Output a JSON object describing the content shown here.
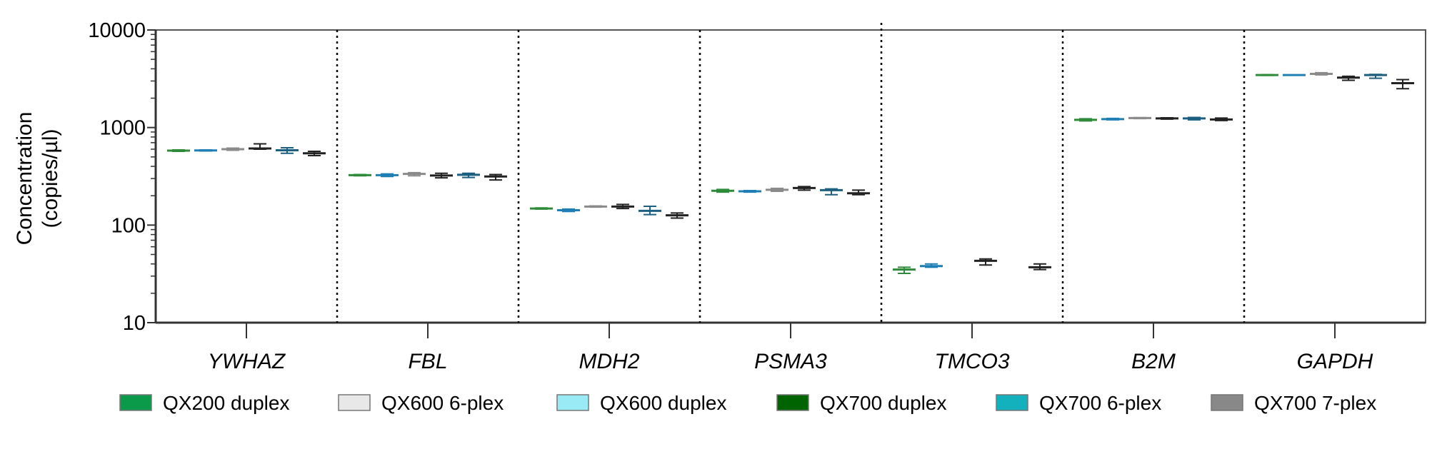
{
  "chart_data": {
    "type": "scatter",
    "subtype": "mean-with-error-bars",
    "ylabel_line1": "Concentration",
    "ylabel_line2": "(copies/µl)",
    "yscale": "log",
    "ylim": [
      10,
      10000
    ],
    "yticks": [
      "10",
      "100",
      "1000",
      "10000"
    ],
    "grid": false,
    "legend_placement": "bottom",
    "categories": [
      "YWHAZ",
      "FBL",
      "MDH2",
      "PSMA3",
      "TMCO3",
      "B2M",
      "GAPDH"
    ],
    "legend": [
      {
        "name": "QX200 duplex",
        "color": "#0a9a4a"
      },
      {
        "name": "QX600 6-plex",
        "color": "#e8e8e8"
      },
      {
        "name": "QX600 duplex",
        "color": "#9aeaf5"
      },
      {
        "name": "QX700 duplex",
        "color": "#006400"
      },
      {
        "name": "QX700 6-plex",
        "color": "#12b1bd"
      },
      {
        "name": "QX700 7-plex",
        "color": "#888888"
      }
    ],
    "series": [
      {
        "name": "QX200 duplex",
        "stroke": "#2e8b3a",
        "values": [
          580,
          325,
          148,
          225,
          35,
          1200,
          3450
        ],
        "low": [
          570,
          320,
          146,
          218,
          32,
          1170,
          3420
        ],
        "high": [
          590,
          330,
          150,
          232,
          37,
          1230,
          3480
        ]
      },
      {
        "name": "QX600 duplex",
        "stroke": "#1f7fb5",
        "values": [
          582,
          325,
          142,
          222,
          38,
          1220,
          3450
        ],
        "low": [
          575,
          315,
          138,
          218,
          37,
          1200,
          3440
        ],
        "high": [
          590,
          335,
          146,
          226,
          40,
          1240,
          3460
        ]
      },
      {
        "name": "QX600 6-plex",
        "stroke": "#8a8a8a",
        "values": [
          600,
          335,
          155,
          230,
          null,
          1250,
          3550
        ],
        "low": [
          585,
          320,
          153,
          222,
          null,
          1235,
          3470
        ],
        "high": [
          615,
          345,
          157,
          238,
          null,
          1265,
          3650
        ]
      },
      {
        "name": "QX700 duplex",
        "stroke": "#222222",
        "values": [
          610,
          322,
          155,
          240,
          43,
          1240,
          3250
        ],
        "low": [
          600,
          305,
          148,
          228,
          39,
          1220,
          3050
        ],
        "high": [
          680,
          340,
          163,
          248,
          45,
          1260,
          3350
        ]
      },
      {
        "name": "QX700 6-plex",
        "stroke": "#1d5f80",
        "values": [
          585,
          328,
          140,
          228,
          null,
          1240,
          3450
        ],
        "low": [
          545,
          308,
          128,
          205,
          null,
          1200,
          3200
        ],
        "high": [
          620,
          340,
          156,
          235,
          null,
          1270,
          3500
        ]
      },
      {
        "name": "QX700 7-plex",
        "stroke": "#222222",
        "values": [
          545,
          315,
          126,
          212,
          37,
          1210,
          2850
        ],
        "low": [
          515,
          290,
          118,
          205,
          35,
          1180,
          2500
        ],
        "high": [
          570,
          330,
          133,
          228,
          40,
          1250,
          3100
        ]
      }
    ]
  }
}
